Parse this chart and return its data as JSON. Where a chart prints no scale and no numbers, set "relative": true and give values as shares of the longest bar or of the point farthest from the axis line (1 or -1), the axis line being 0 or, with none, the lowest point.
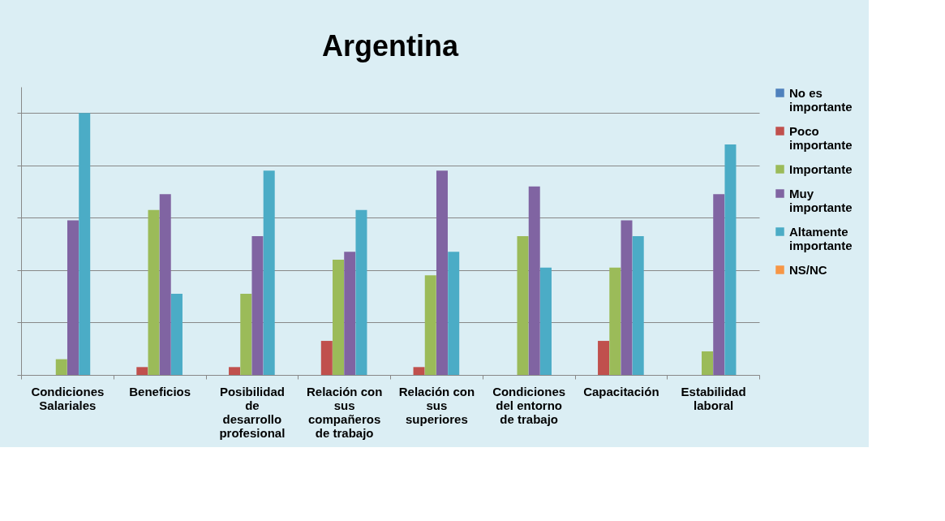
{
  "chart_data": {
    "type": "bar",
    "title": "Argentina",
    "relative": true,
    "grid": "y",
    "legend": "right",
    "categories": [
      "Condiciones Salariales",
      "Beneficios",
      "Posibilidad de desarrollo profesional",
      "Relación con sus compañeros de trabajo",
      "Relación con sus superiores",
      "Condiciones del entorno de trabajo",
      "Capacitación",
      "Estabilidad laboral"
    ],
    "series": [
      {
        "name": "No es importante",
        "color": "#4f81bd",
        "values": [
          0,
          0,
          0,
          0,
          0,
          0,
          0,
          0
        ]
      },
      {
        "name": "Poco importante",
        "color": "#c0504d",
        "values": [
          0,
          0.03,
          0.03,
          0.13,
          0.03,
          0,
          0.13,
          0
        ]
      },
      {
        "name": "Importante",
        "color": "#9bbb59",
        "values": [
          0.06,
          0.63,
          0.31,
          0.44,
          0.38,
          0.53,
          0.41,
          0.09
        ]
      },
      {
        "name": "Muy importante",
        "color": "#8064a2",
        "values": [
          0.59,
          0.69,
          0.53,
          0.47,
          0.78,
          0.72,
          0.59,
          0.69
        ]
      },
      {
        "name": "Altamente importante",
        "color": "#4bacc6",
        "values": [
          1,
          0.31,
          0.78,
          0.63,
          0.47,
          0.41,
          0.53,
          0.88
        ]
      },
      {
        "name": "NS/NC",
        "color": "#f79646",
        "values": [
          0,
          0,
          0,
          0,
          0,
          0,
          0,
          0
        ]
      }
    ]
  }
}
